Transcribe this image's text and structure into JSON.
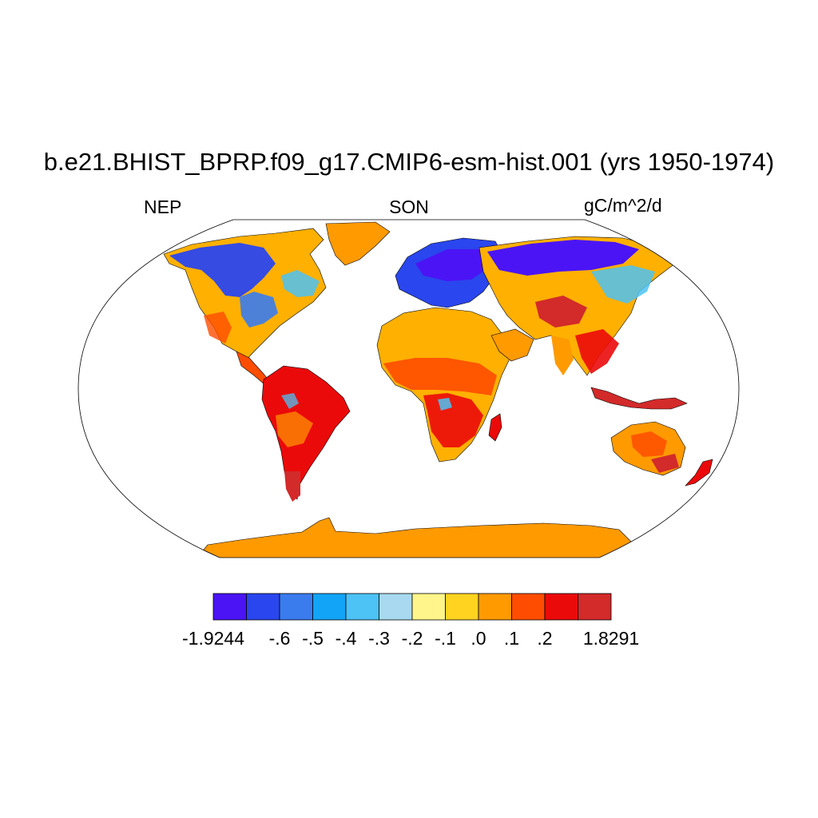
{
  "title": "b.e21.BHIST_BPRP.f09_g17.CMIP6-esm-hist.001 (yrs 1950-1974)",
  "left_label": "NEP",
  "center_label": "SON",
  "right_label": "gC/m^2/d",
  "colorbar": {
    "colors": [
      "#4b14f5",
      "#2a46ee",
      "#3a7cee",
      "#12a4f6",
      "#4cc2f5",
      "#a8d9f0",
      "#fff58a",
      "#ffd320",
      "#ff9a00",
      "#ff4d00",
      "#eb0a0a",
      "#d32a2a"
    ],
    "tick_labels": [
      "-1.9244",
      "-.6",
      "-.5",
      "-.4",
      "-.3",
      "-.2",
      "-.1",
      ".0",
      ".1",
      ".2",
      "1.8291"
    ]
  },
  "map": {
    "projection": "robinson",
    "ocean_color": "#ffffff",
    "antarctica_color": "#ff9a00"
  }
}
